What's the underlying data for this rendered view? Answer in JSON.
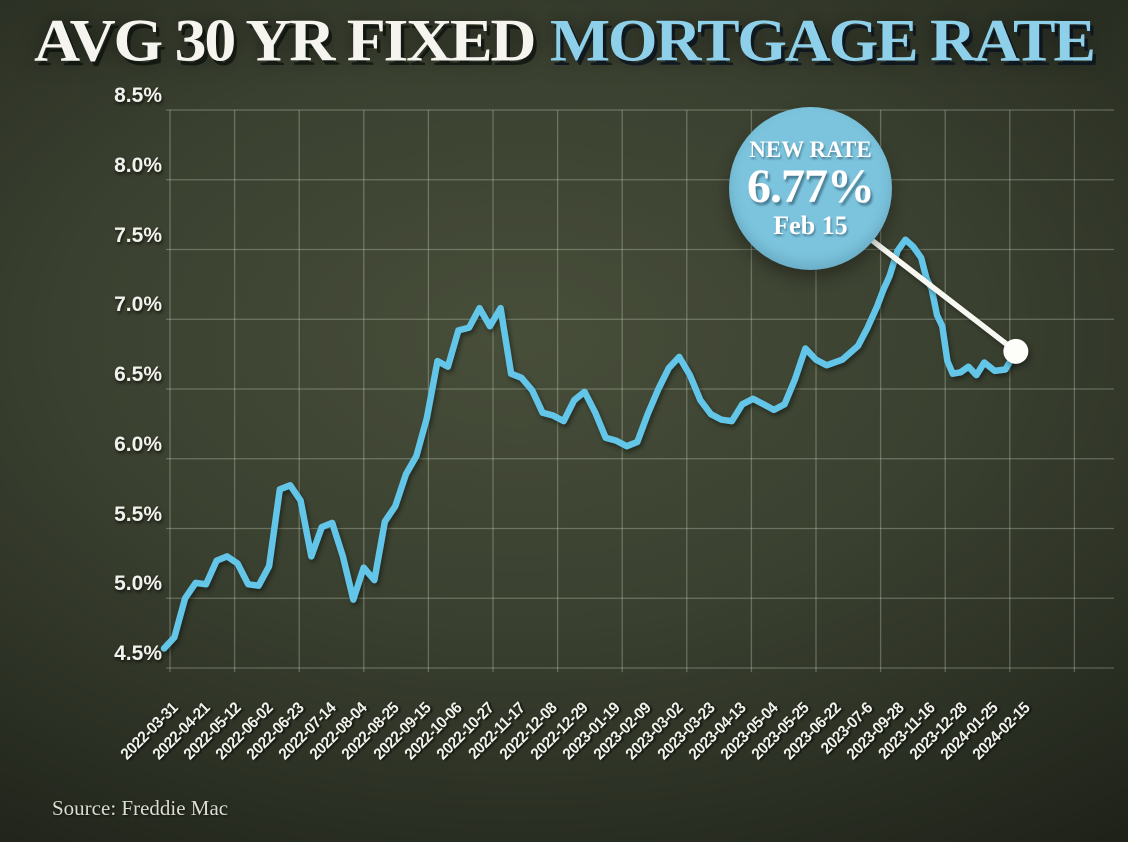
{
  "title": {
    "white": "AVG 30 YR FIXED",
    "blue": "MORTGAGE RATE"
  },
  "callout": {
    "label": "NEW RATE",
    "value": "6.77%",
    "date": "Feb 15"
  },
  "source": "Source: Freddie Mac",
  "colors": {
    "background_center": "#484f3a",
    "background_edge": "#1a1d15",
    "line": "#63c5e8",
    "title_white": "#f5f4ee",
    "title_blue": "#8ed0ea",
    "bubble": "#7cc4dd",
    "bubble_text": "#ffffff",
    "axis_text": "#f2f2ec",
    "grid": "rgba(215,228,207,0.30)",
    "pointer_line": "#f8f8f3",
    "end_dot": "#fdfdfa"
  },
  "chart_data": {
    "type": "line",
    "title": "AVG 30 YR FIXED MORTGAGE RATE",
    "xlabel": "",
    "ylabel": "",
    "ylim": [
      4.5,
      8.5
    ],
    "grid": true,
    "y_tick_labels": [
      "8.5%",
      "8.0%",
      "7.5%",
      "7.0%",
      "6.5%",
      "6.0%",
      "5.5%",
      "5.0%",
      "4.5%"
    ],
    "x_tick_labels": [
      "2022-03-31",
      "2022-04-21",
      "2022-05-12",
      "2022-06-02",
      "2022-06-23",
      "2022-07-14",
      "2022-08-04",
      "2022-08-25",
      "2022-09-15",
      "2022-10-06",
      "2022-10-27",
      "2022-11-17",
      "2022-12-08",
      "2022-12-29",
      "2023-01-19",
      "2023-02-09",
      "2023-03-02",
      "2023-03-23",
      "2023-04-13",
      "2023-05-04",
      "2023-05-25",
      "2023-06-22",
      "2023-07-6",
      "2023-09-28",
      "2023-11-16",
      "2023-12-28",
      "2024-01-25",
      "2024-02-15"
    ],
    "values_at_ticks": [
      4.67,
      5.11,
      5.3,
      5.09,
      5.81,
      5.51,
      4.99,
      5.55,
      6.02,
      6.66,
      7.08,
      6.61,
      6.33,
      6.42,
      6.15,
      6.12,
      6.65,
      6.42,
      6.27,
      6.39,
      6.57,
      6.67,
      6.81,
      7.31,
      7.44,
      6.61,
      6.69,
      6.77
    ],
    "annotation": {
      "text": "NEW RATE 6.77% Feb 15",
      "points_to": {
        "x_label": "2024-02-15",
        "value": 6.77
      }
    },
    "render_points": [
      [
        0,
        4.64
      ],
      [
        0.33,
        4.72
      ],
      [
        0.67,
        5.0
      ],
      [
        1,
        5.11
      ],
      [
        1.33,
        5.1
      ],
      [
        1.67,
        5.27
      ],
      [
        2,
        5.3
      ],
      [
        2.33,
        5.25
      ],
      [
        2.67,
        5.1
      ],
      [
        3,
        5.09
      ],
      [
        3.33,
        5.23
      ],
      [
        3.67,
        5.78
      ],
      [
        4,
        5.81
      ],
      [
        4.33,
        5.7
      ],
      [
        4.67,
        5.3
      ],
      [
        5,
        5.51
      ],
      [
        5.33,
        5.54
      ],
      [
        5.67,
        5.3
      ],
      [
        6,
        4.99
      ],
      [
        6.33,
        5.22
      ],
      [
        6.67,
        5.13
      ],
      [
        7,
        5.55
      ],
      [
        7.33,
        5.66
      ],
      [
        7.67,
        5.89
      ],
      [
        8,
        6.02
      ],
      [
        8.33,
        6.29
      ],
      [
        8.67,
        6.7
      ],
      [
        9,
        6.66
      ],
      [
        9.33,
        6.92
      ],
      [
        9.67,
        6.94
      ],
      [
        10,
        7.08
      ],
      [
        10.33,
        6.95
      ],
      [
        10.67,
        7.08
      ],
      [
        11,
        6.61
      ],
      [
        11.33,
        6.58
      ],
      [
        11.67,
        6.49
      ],
      [
        12,
        6.33
      ],
      [
        12.33,
        6.31
      ],
      [
        12.67,
        6.27
      ],
      [
        13,
        6.42
      ],
      [
        13.33,
        6.48
      ],
      [
        13.67,
        6.33
      ],
      [
        14,
        6.15
      ],
      [
        14.33,
        6.13
      ],
      [
        14.67,
        6.09
      ],
      [
        15,
        6.12
      ],
      [
        15.33,
        6.32
      ],
      [
        15.67,
        6.5
      ],
      [
        16,
        6.65
      ],
      [
        16.33,
        6.73
      ],
      [
        16.67,
        6.6
      ],
      [
        17,
        6.42
      ],
      [
        17.33,
        6.32
      ],
      [
        17.67,
        6.28
      ],
      [
        18,
        6.27
      ],
      [
        18.33,
        6.39
      ],
      [
        18.67,
        6.43
      ],
      [
        19,
        6.39
      ],
      [
        19.33,
        6.35
      ],
      [
        19.67,
        6.39
      ],
      [
        20,
        6.57
      ],
      [
        20.33,
        6.79
      ],
      [
        20.67,
        6.71
      ],
      [
        21,
        6.67
      ],
      [
        21.5,
        6.71
      ],
      [
        22,
        6.81
      ],
      [
        22.3,
        6.94
      ],
      [
        22.6,
        7.09
      ],
      [
        22.8,
        7.21
      ],
      [
        23,
        7.31
      ],
      [
        23.25,
        7.49
      ],
      [
        23.5,
        7.57
      ],
      [
        23.75,
        7.52
      ],
      [
        24,
        7.44
      ],
      [
        24.17,
        7.29
      ],
      [
        24.33,
        7.22
      ],
      [
        24.5,
        7.03
      ],
      [
        24.67,
        6.95
      ],
      [
        24.83,
        6.7
      ],
      [
        25,
        6.61
      ],
      [
        25.25,
        6.62
      ],
      [
        25.5,
        6.66
      ],
      [
        25.75,
        6.6
      ],
      [
        26,
        6.69
      ],
      [
        26.33,
        6.63
      ],
      [
        26.67,
        6.64
      ],
      [
        27,
        6.77
      ]
    ]
  }
}
